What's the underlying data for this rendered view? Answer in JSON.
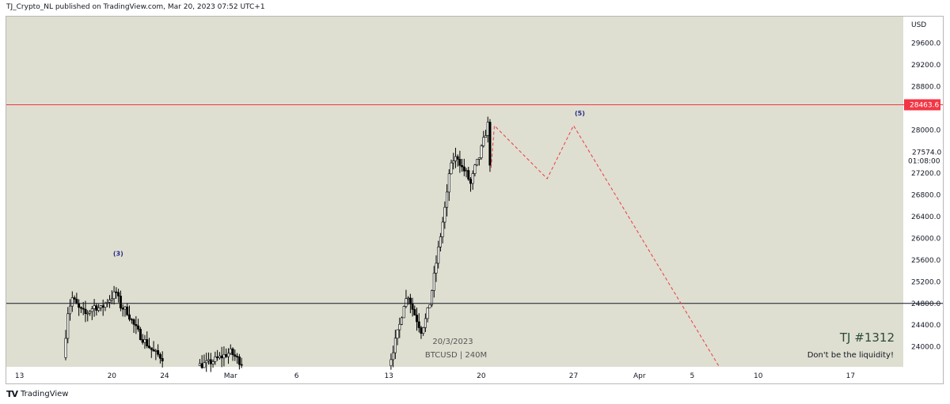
{
  "header": {
    "text": "TJ_Crypto_NL published on TradingView.com, Mar 20, 2023 07:52 UTC+1"
  },
  "footer": {
    "brand": "TradingView",
    "logo": "TV"
  },
  "colors": {
    "background": "#dedfd0",
    "bull": "#ffffff",
    "bear": "#000000",
    "resistance": "#f23645",
    "support": "#131722",
    "projection": "#f23645",
    "wave_label": "#2a2a8c"
  },
  "chart_data": {
    "type": "candlestick",
    "symbol": "BTCUSD",
    "timeframe": "240M",
    "currency": "USD",
    "y_ticks": [
      24000,
      24400,
      24800,
      25200,
      25600,
      26000,
      26400,
      26800,
      27200,
      27600,
      28000,
      28400,
      28800,
      29200,
      29600
    ],
    "y_tick_labels": [
      "24000.0",
      "24400.0",
      "24800.0",
      "25200.0",
      "25600.0",
      "26000.0",
      "26400.0",
      "26800.0",
      "27200.0",
      "28000.0",
      "28800.0",
      "29200.0",
      "29600.0"
    ],
    "ylim": [
      23630,
      30090
    ],
    "x_tick_labels": [
      "13",
      "20",
      "24",
      "Mar",
      "6",
      "13",
      "20",
      "27",
      "Apr",
      "5",
      "10",
      "17"
    ],
    "x_tick_dates": [
      "2023-02-13",
      "2023-02-20",
      "2023-02-24",
      "2023-03-01",
      "2023-03-06",
      "2023-03-13",
      "2023-03-20",
      "2023-03-27",
      "2023-04-01",
      "2023-04-05",
      "2023-04-10",
      "2023-04-17"
    ],
    "xlim": [
      "2023-02-12",
      "2023-04-21"
    ],
    "current_price": {
      "value": "27574.0",
      "countdown": "01:08:00"
    },
    "horizontal_lines": [
      {
        "value": 28463.6,
        "label": "28463.6",
        "color": "#f23645"
      },
      {
        "value": 24800.0,
        "color": "#131722"
      }
    ],
    "wave_labels": [
      {
        "text": "(3)",
        "date": "2023-02-20",
        "price": 25680
      },
      {
        "text": "(5)",
        "date": "2023-03-27",
        "price": 28270
      }
    ],
    "projection_path": [
      {
        "date": "2023-03-20T18:00",
        "price": 27300
      },
      {
        "date": "2023-03-21",
        "price": 28080
      },
      {
        "date": "2023-03-25",
        "price": 27100
      },
      {
        "date": "2023-03-27",
        "price": 28080
      },
      {
        "date": "2023-04-07",
        "price": 23650
      }
    ],
    "annotations": {
      "date_label": "20/3/2023",
      "symbol_label": "BTCUSD | 240M",
      "title": "TJ #1312",
      "subtitle": "Don't be the liquidity!"
    },
    "segments": [
      {
        "start": "2023-02-16T08:00",
        "end": "2023-02-23T20:00",
        "start_price": 23800,
        "path": [
          [
            0,
            23800
          ],
          [
            2,
            24650
          ],
          [
            4,
            24900
          ],
          [
            7,
            24700
          ],
          [
            10,
            24600
          ],
          [
            14,
            24750
          ],
          [
            17,
            24700
          ],
          [
            20,
            24850
          ],
          [
            24,
            25000
          ],
          [
            26,
            24750
          ],
          [
            29,
            24650
          ],
          [
            32,
            24400
          ],
          [
            35,
            24200
          ],
          [
            38,
            24050
          ],
          [
            41,
            23900
          ],
          [
            45,
            23800
          ]
        ]
      },
      {
        "start": "2023-02-26T12:00",
        "end": "2023-03-01T20:00",
        "start_price": 23650,
        "path": [
          [
            0,
            23650
          ],
          [
            5,
            23700
          ],
          [
            10,
            23800
          ],
          [
            15,
            23900
          ],
          [
            20,
            23700
          ]
        ]
      },
      {
        "start": "2023-03-13T00:00",
        "end": "2023-03-20T16:00",
        "start_price": 23650,
        "path": [
          [
            0,
            23650
          ],
          [
            3,
            24100
          ],
          [
            5,
            24400
          ],
          [
            7,
            24800
          ],
          [
            9,
            24950
          ],
          [
            11,
            24700
          ],
          [
            13,
            24500
          ],
          [
            15,
            24300
          ],
          [
            17,
            24500
          ],
          [
            19,
            24800
          ],
          [
            21,
            25300
          ],
          [
            23,
            25800
          ],
          [
            25,
            26300
          ],
          [
            27,
            26800
          ],
          [
            28,
            27200
          ],
          [
            30,
            27450
          ],
          [
            32,
            27500
          ],
          [
            34,
            27300
          ],
          [
            36,
            27200
          ],
          [
            38,
            27000
          ],
          [
            40,
            27300
          ],
          [
            42,
            27500
          ],
          [
            44,
            27800
          ],
          [
            46,
            28100
          ],
          [
            47,
            27400
          ]
        ]
      }
    ]
  }
}
